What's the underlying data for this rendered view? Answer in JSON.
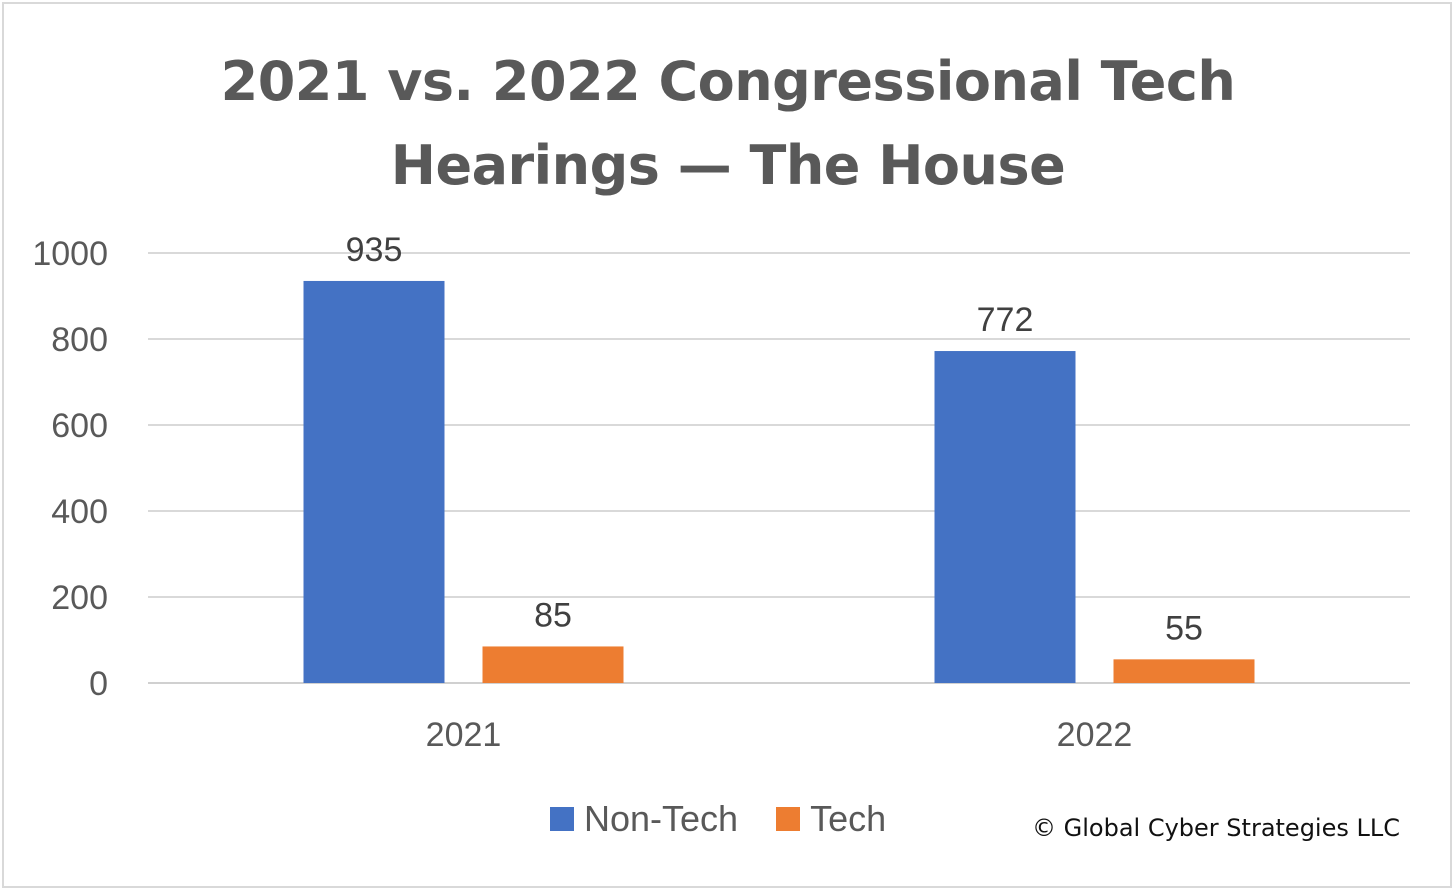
{
  "chart_data": {
    "type": "bar",
    "title_line1": "2021 vs. 2022 Congressional Tech",
    "title_line2": "Hearings — The House",
    "categories": [
      "2021",
      "2022"
    ],
    "series": [
      {
        "name": "Non-Tech",
        "color": "#4472C4",
        "values": [
          935,
          772
        ]
      },
      {
        "name": "Tech",
        "color": "#ED7D31",
        "values": [
          85,
          55
        ]
      }
    ],
    "ylim": [
      0,
      1000
    ],
    "yticks": [
      0,
      200,
      400,
      600,
      800,
      1000
    ],
    "grid": true,
    "legend_position": "bottom",
    "data_labels": true
  },
  "copyright": "© Global Cyber Strategies LLC"
}
